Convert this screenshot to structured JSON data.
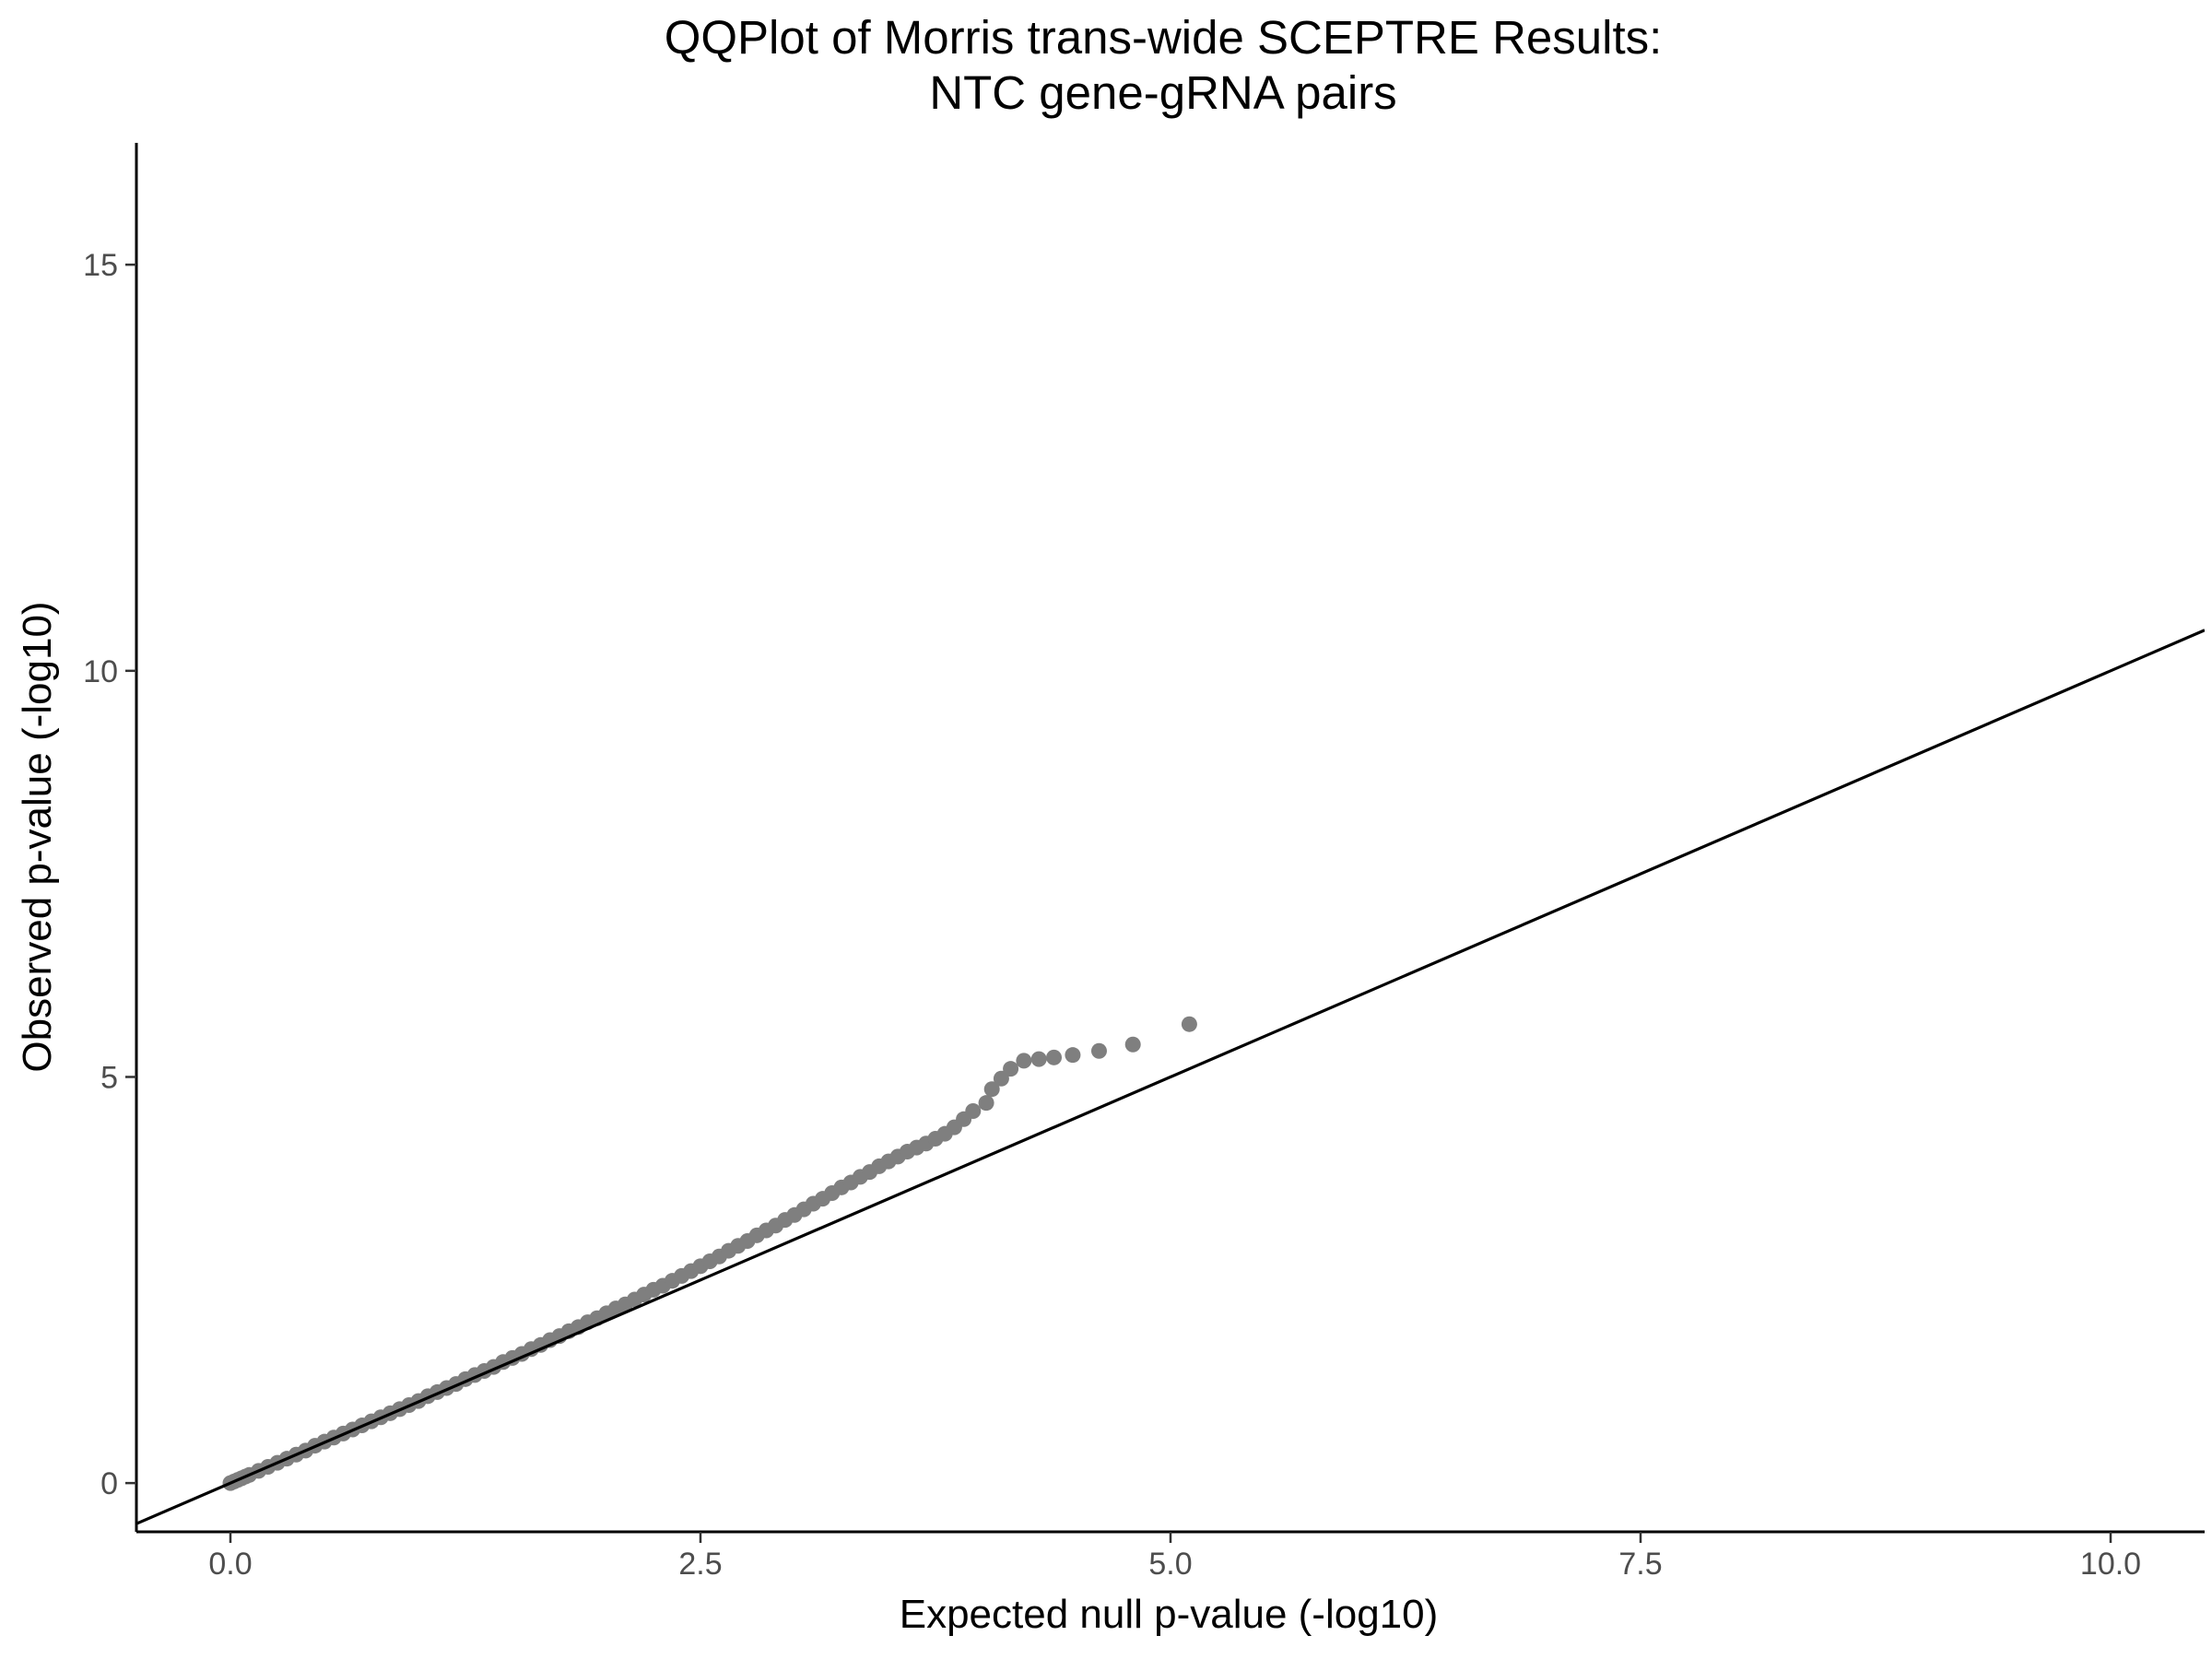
{
  "chart_data": {
    "type": "scatter",
    "title_line1": "QQPlot of Morris trans-wide SCEPTRE Results:",
    "title_line2": "NTC gene-gRNA pairs",
    "xlabel": "Expected null p-value (-log10)",
    "ylabel": "Observed p-value (-log10)",
    "xlim": [
      -0.5,
      10.5
    ],
    "ylim": [
      -0.6,
      16.5
    ],
    "xticks": [
      0,
      2.5,
      5,
      7.5,
      10
    ],
    "xtick_labels": [
      "0.0",
      "2.5",
      "5.0",
      "7.5",
      "10.0"
    ],
    "yticks": [
      0,
      5,
      10,
      15
    ],
    "ytick_labels": [
      "0",
      "5",
      "10",
      "15"
    ],
    "grid": false,
    "legend": "none",
    "point_color": "#7f7f7f",
    "line_color": "#000000",
    "reference_line": {
      "intercept": 0,
      "slope": 1
    },
    "series": [
      {
        "x": [
          0.0,
          0.02,
          0.04,
          0.06,
          0.08,
          0.1,
          0.15,
          0.2,
          0.25,
          0.3,
          0.35,
          0.4,
          0.45,
          0.5,
          0.55,
          0.6,
          0.65,
          0.7,
          0.75,
          0.8,
          0.85,
          0.9,
          0.95,
          1.0,
          1.05,
          1.1,
          1.15,
          1.2,
          1.25,
          1.3,
          1.35,
          1.4,
          1.45,
          1.5,
          1.55,
          1.6,
          1.65,
          1.7,
          1.75,
          1.8,
          1.85,
          1.9,
          1.95,
          2.0,
          2.05,
          2.1,
          2.15,
          2.2,
          2.25,
          2.3,
          2.35,
          2.4,
          2.45,
          2.5,
          2.55,
          2.6,
          2.65,
          2.7,
          2.75,
          2.8,
          2.85,
          2.9,
          2.95,
          3.0,
          3.05,
          3.1,
          3.15,
          3.2,
          3.25,
          3.3,
          3.35,
          3.4,
          3.45,
          3.5,
          3.55,
          3.6,
          3.65,
          3.7,
          3.75,
          3.8,
          3.85,
          3.9,
          3.95,
          4.02,
          4.05,
          4.1,
          4.15,
          4.22,
          4.3,
          4.38,
          4.48,
          4.62,
          4.8,
          5.1
        ],
        "y": [
          0.0,
          0.02,
          0.04,
          0.06,
          0.08,
          0.1,
          0.15,
          0.2,
          0.25,
          0.3,
          0.35,
          0.4,
          0.46,
          0.51,
          0.56,
          0.61,
          0.66,
          0.71,
          0.76,
          0.81,
          0.86,
          0.91,
          0.96,
          1.01,
          1.07,
          1.12,
          1.17,
          1.22,
          1.28,
          1.33,
          1.38,
          1.43,
          1.49,
          1.54,
          1.59,
          1.65,
          1.7,
          1.76,
          1.81,
          1.87,
          1.92,
          1.98,
          2.03,
          2.09,
          2.15,
          2.2,
          2.26,
          2.32,
          2.38,
          2.43,
          2.49,
          2.55,
          2.61,
          2.67,
          2.73,
          2.79,
          2.86,
          2.92,
          2.98,
          3.05,
          3.11,
          3.17,
          3.24,
          3.3,
          3.37,
          3.44,
          3.5,
          3.57,
          3.64,
          3.7,
          3.77,
          3.83,
          3.9,
          3.96,
          4.02,
          4.08,
          4.13,
          4.18,
          4.24,
          4.3,
          4.38,
          4.48,
          4.58,
          4.68,
          4.85,
          4.98,
          5.1,
          5.2,
          5.22,
          5.24,
          5.27,
          5.32,
          5.4,
          5.65
        ]
      }
    ]
  }
}
